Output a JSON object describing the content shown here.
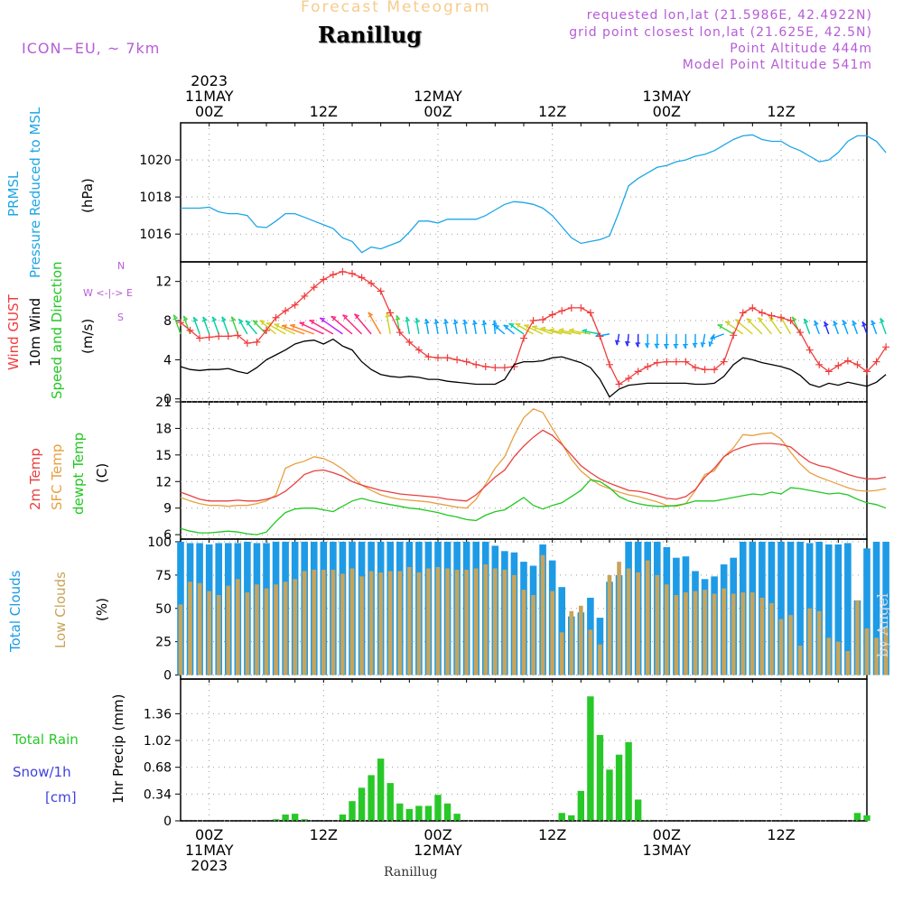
{
  "header": {
    "subtitle": "Forecast Meteogram",
    "location": "Ranillug",
    "model": "ICON−EU, ~ 7km",
    "requested": "requested lon,lat (21.5986E, 42.4922N)",
    "gridpoint": "grid point closest lon,lat (21.625E, 42.5N)",
    "point_alt": "Point Altitude 444m",
    "model_alt": "Model Point Altitude 541m"
  },
  "footer": {
    "location": "Ranillug",
    "watermark": "by Angel"
  },
  "labels": {
    "prmsl": "PRMSL",
    "prmsl_long": "Pressure Reduced to MSL",
    "hpa": "(hPa)",
    "gust": "Wind GUST",
    "wind10": "10m Wind",
    "speed_dir": "Speed and Direction",
    "ms": "(m/s)",
    "compass_n": "N",
    "compass_s": "S",
    "compass_we": "W <-|-> E",
    "t2m": "2m Temp",
    "sfc": "SFC Temp",
    "dewpt": "dewpt Temp",
    "degc": "(C)",
    "total_clouds": "Total Clouds",
    "low_clouds": "Low Clouds",
    "pct": "(%)",
    "total_rain": "Total  Rain",
    "snow": "Snow/1h",
    "cm": "[cm]",
    "precip": "1hr Precip (mm)"
  },
  "colors": {
    "pressure": "#1ea6e6",
    "gust": "#f03c3c",
    "wind": "#000000",
    "t2m": "#e84040",
    "sfc": "#e8a040",
    "dewpt": "#22c822",
    "total_clouds": "#1e9be6",
    "low_clouds": "#c8a45a",
    "rain": "#28c828",
    "snow": "#4040e0",
    "purple": "#b65cd6"
  },
  "chart_data": {
    "type": "line",
    "time_axis": {
      "start": "2023-05-10T21:00Z",
      "end": "2023-05-13T21:00Z",
      "step_hours": 1,
      "top_labels": [
        {
          "time": "2023-05-11T00:00Z",
          "lines": [
            "2023",
            "11MAY",
            "00Z"
          ]
        },
        {
          "time": "2023-05-11T12:00Z",
          "lines": [
            "12Z"
          ]
        },
        {
          "time": "2023-05-12T00:00Z",
          "lines": [
            "12MAY",
            "00Z"
          ]
        },
        {
          "time": "2023-05-12T12:00Z",
          "lines": [
            "12Z"
          ]
        },
        {
          "time": "2023-05-13T00:00Z",
          "lines": [
            "13MAY",
            "00Z"
          ]
        },
        {
          "time": "2023-05-13T12:00Z",
          "lines": [
            "12Z"
          ]
        }
      ],
      "bottom_labels": [
        {
          "time": "2023-05-11T00:00Z",
          "lines": [
            "00Z",
            "11MAY",
            "2023"
          ]
        },
        {
          "time": "2023-05-11T12:00Z",
          "lines": [
            "12Z"
          ]
        },
        {
          "time": "2023-05-12T00:00Z",
          "lines": [
            "00Z",
            "12MAY"
          ]
        },
        {
          "time": "2023-05-12T12:00Z",
          "lines": [
            "12Z"
          ]
        },
        {
          "time": "2023-05-13T00:00Z",
          "lines": [
            "00Z",
            "13MAY"
          ]
        },
        {
          "time": "2023-05-13T12:00Z",
          "lines": [
            "12Z"
          ]
        }
      ]
    },
    "panels": {
      "pressure": {
        "ylabel": "(hPa)",
        "ylim": [
          1014.5,
          1022
        ],
        "yticks": [
          1016,
          1018,
          1020
        ],
        "values": [
          1017.4,
          1017.4,
          1017.4,
          1017.45,
          1017.2,
          1017.1,
          1017.1,
          1017.0,
          1016.4,
          1016.35,
          1016.7,
          1017.1,
          1017.1,
          1016.9,
          1016.7,
          1016.5,
          1016.3,
          1015.8,
          1015.6,
          1015.0,
          1015.3,
          1015.2,
          1015.4,
          1015.6,
          1016.1,
          1016.7,
          1016.7,
          1016.6,
          1016.8,
          1016.8,
          1016.8,
          1016.8,
          1017.0,
          1017.3,
          1017.6,
          1017.75,
          1017.7,
          1017.6,
          1017.4,
          1017.0,
          1016.4,
          1015.8,
          1015.5,
          1015.6,
          1015.7,
          1015.9,
          1017.2,
          1018.6,
          1019.0,
          1019.3,
          1019.6,
          1019.7,
          1019.9,
          1020.0,
          1020.2,
          1020.3,
          1020.5,
          1020.8,
          1021.1,
          1021.3,
          1021.35,
          1021.1,
          1021.0,
          1021.0,
          1020.7,
          1020.5,
          1020.2,
          1019.9,
          1020.0,
          1020.4,
          1021.0,
          1021.3,
          1021.3,
          1021.0,
          1020.4
        ]
      },
      "wind": {
        "ylabel": "(m/s)",
        "ylim": [
          -0.3,
          14
        ],
        "yticks": [
          0,
          4,
          8,
          12
        ],
        "gust": [
          7.8,
          7.0,
          6.2,
          6.3,
          6.4,
          6.4,
          6.5,
          5.7,
          5.8,
          7.0,
          8.3,
          9.0,
          9.6,
          10.5,
          11.4,
          12.2,
          12.7,
          13.0,
          12.8,
          12.4,
          11.8,
          11.0,
          8.8,
          6.8,
          5.8,
          5.0,
          4.3,
          4.2,
          4.2,
          4.0,
          3.8,
          3.5,
          3.3,
          3.2,
          3.2,
          3.3,
          6.2,
          8.0,
          8.1,
          8.6,
          9.0,
          9.3,
          9.3,
          8.8,
          6.4,
          3.5,
          1.5,
          2.1,
          2.8,
          3.3,
          3.7,
          3.8,
          3.8,
          3.8,
          3.2,
          3.0,
          3.0,
          3.8,
          6.5,
          8.8,
          9.3,
          8.8,
          8.5,
          8.3,
          8.0,
          6.8,
          5.0,
          3.5,
          2.8,
          3.4,
          3.9,
          3.5,
          2.8,
          3.8,
          5.3
        ],
        "wind10": [
          3.3,
          3.0,
          2.9,
          3.0,
          3.0,
          3.1,
          2.8,
          2.6,
          3.2,
          4.0,
          4.5,
          5.0,
          5.6,
          5.9,
          6.0,
          5.6,
          6.1,
          5.4,
          5.0,
          3.8,
          3.0,
          2.5,
          2.3,
          2.2,
          2.3,
          2.2,
          2.0,
          2.0,
          1.8,
          1.7,
          1.6,
          1.5,
          1.5,
          1.5,
          2.0,
          3.5,
          3.8,
          3.8,
          3.9,
          4.2,
          4.3,
          4.0,
          3.7,
          3.2,
          2.0,
          0.2,
          1.0,
          1.4,
          1.5,
          1.6,
          1.6,
          1.6,
          1.6,
          1.6,
          1.5,
          1.5,
          1.6,
          2.3,
          3.5,
          4.2,
          4.0,
          3.7,
          3.5,
          3.3,
          3.0,
          2.4,
          1.5,
          1.2,
          1.6,
          1.4,
          1.7,
          1.5,
          1.3,
          1.7,
          2.5
        ],
        "direction_deg": [
          110,
          110,
          110,
          110,
          110,
          110,
          110,
          120,
          130,
          135,
          140,
          150,
          155,
          160,
          160,
          155,
          150,
          145,
          140,
          135,
          130,
          120,
          100,
          100,
          100,
          100,
          100,
          100,
          100,
          100,
          100,
          100,
          100,
          95,
          140,
          140,
          145,
          150,
          155,
          160,
          165,
          170,
          170,
          170,
          170,
          190,
          260,
          265,
          270,
          270,
          270,
          270,
          270,
          270,
          270,
          260,
          250,
          200,
          150,
          145,
          140,
          135,
          130,
          125,
          120,
          115,
          110,
          110,
          110,
          110,
          110,
          110,
          110,
          110,
          110
        ]
      },
      "temperature": {
        "ylabel": "(C)",
        "ylim": [
          5.5,
          21
        ],
        "yticks": [
          6,
          9,
          12,
          15,
          18,
          21
        ],
        "t2m": [
          10.8,
          10.4,
          10.0,
          9.8,
          9.8,
          9.8,
          9.9,
          9.8,
          9.8,
          10.0,
          10.3,
          10.9,
          11.8,
          12.8,
          13.2,
          13.3,
          13.0,
          12.6,
          12.0,
          11.6,
          11.3,
          11.0,
          10.8,
          10.6,
          10.5,
          10.4,
          10.3,
          10.2,
          10.0,
          9.9,
          9.8,
          10.5,
          11.5,
          12.5,
          13.3,
          14.8,
          16.0,
          17.0,
          17.8,
          17.2,
          16.2,
          15.0,
          13.8,
          13.0,
          12.3,
          11.8,
          11.4,
          11.0,
          10.9,
          10.7,
          10.4,
          10.1,
          10.0,
          10.3,
          11.1,
          12.5,
          13.5,
          14.8,
          15.5,
          15.9,
          16.2,
          16.3,
          16.3,
          16.2,
          15.9,
          15.0,
          14.2,
          13.8,
          13.6,
          13.2,
          12.8,
          12.5,
          12.3,
          12.3,
          12.5
        ],
        "sfc": [
          10.2,
          9.8,
          9.5,
          9.3,
          9.3,
          9.2,
          9.3,
          9.3,
          9.5,
          9.8,
          10.5,
          13.5,
          14.0,
          14.3,
          14.8,
          14.6,
          14.1,
          13.4,
          12.5,
          11.6,
          11.0,
          10.5,
          10.2,
          10.0,
          9.9,
          9.8,
          9.7,
          9.5,
          9.3,
          9.1,
          9.0,
          10.0,
          11.7,
          13.5,
          14.8,
          17.2,
          19.2,
          20.2,
          19.8,
          18.0,
          16.3,
          14.5,
          13.2,
          12.3,
          11.6,
          11.2,
          10.8,
          10.5,
          10.3,
          10.0,
          9.7,
          9.3,
          9.2,
          9.5,
          11.0,
          12.8,
          13.2,
          14.8,
          15.8,
          17.3,
          17.2,
          17.4,
          17.5,
          16.8,
          15.3,
          14.0,
          13.0,
          12.5,
          12.1,
          11.7,
          11.3,
          11.0,
          10.9,
          11.0,
          11.2
        ],
        "dewpt": [
          6.7,
          6.4,
          6.2,
          6.2,
          6.3,
          6.4,
          6.3,
          6.1,
          6.0,
          6.3,
          7.5,
          8.5,
          8.9,
          9.0,
          9.0,
          8.8,
          8.6,
          9.2,
          9.8,
          10.1,
          9.8,
          9.6,
          9.4,
          9.2,
          9.0,
          8.9,
          8.7,
          8.5,
          8.2,
          8.0,
          7.7,
          7.6,
          8.2,
          8.6,
          8.8,
          9.5,
          10.2,
          9.3,
          8.9,
          9.3,
          9.6,
          10.3,
          11.0,
          12.2,
          12.0,
          11.3,
          10.3,
          9.8,
          9.5,
          9.3,
          9.2,
          9.2,
          9.3,
          9.5,
          9.8,
          9.8,
          9.8,
          10.0,
          10.2,
          10.4,
          10.6,
          10.5,
          10.8,
          10.6,
          11.3,
          11.2,
          11.0,
          10.8,
          10.6,
          10.7,
          10.5,
          10.0,
          9.6,
          9.4,
          9.0
        ]
      },
      "clouds": {
        "ylabel": "(%)",
        "ylim": [
          -3,
          102
        ],
        "yticks": [
          0,
          25,
          50,
          75,
          100
        ],
        "total": [
          100,
          99,
          99,
          98,
          99,
          99,
          99,
          100,
          99,
          99,
          100,
          100,
          100,
          100,
          100,
          100,
          100,
          100,
          100,
          100,
          100,
          100,
          100,
          100,
          100,
          100,
          100,
          100,
          100,
          100,
          100,
          100,
          100,
          97,
          93,
          92,
          85,
          82,
          98,
          86,
          66,
          44,
          47,
          58,
          43,
          70,
          75,
          100,
          100,
          100,
          100,
          96,
          88,
          89,
          78,
          72,
          74,
          83,
          88,
          100,
          100,
          100,
          100,
          100,
          100,
          100,
          99,
          100,
          98,
          98,
          99,
          56,
          95,
          100,
          100
        ],
        "low": [
          53,
          70,
          69,
          63,
          60,
          67,
          72,
          62,
          68,
          65,
          68,
          70,
          72,
          78,
          79,
          79,
          79,
          76,
          80,
          74,
          78,
          77,
          78,
          78,
          81,
          77,
          80,
          81,
          80,
          79,
          79,
          80,
          83,
          80,
          79,
          75,
          64,
          60,
          90,
          63,
          32,
          48,
          52,
          34,
          23,
          75,
          85,
          80,
          77,
          86,
          75,
          68,
          60,
          62,
          63,
          64,
          61,
          65,
          61,
          62,
          62,
          58,
          54,
          42,
          45,
          22,
          50,
          48,
          28,
          25,
          18,
          56,
          35,
          28,
          35
        ]
      },
      "precip": {
        "ylabel": "1hr Precip (mm)",
        "ylim": [
          0,
          1.8
        ],
        "yticks": [
          0,
          0.34,
          0.68,
          1.02,
          1.36
        ],
        "rain": [
          0,
          0,
          0,
          0,
          0,
          0,
          0,
          0,
          0,
          0,
          0.02,
          0.08,
          0.09,
          0.02,
          0,
          0,
          0,
          0.08,
          0.25,
          0.42,
          0.58,
          0.79,
          0.48,
          0.22,
          0.15,
          0.19,
          0.19,
          0.33,
          0.22,
          0.09,
          0,
          0,
          0,
          0,
          0,
          0,
          0,
          0,
          0,
          0,
          0.1,
          0.07,
          0.38,
          1.58,
          1.09,
          0.65,
          0.84,
          1.0,
          0.27,
          0.01,
          0,
          0,
          0,
          0,
          0,
          0,
          0,
          0,
          0,
          0,
          0,
          0,
          0,
          0,
          0,
          0,
          0,
          0,
          0,
          0,
          0,
          0.1,
          0.07,
          0,
          0
        ]
      }
    }
  }
}
